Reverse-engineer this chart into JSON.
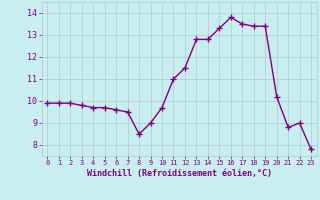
{
  "x": [
    0,
    1,
    2,
    3,
    4,
    5,
    6,
    7,
    8,
    9,
    10,
    11,
    12,
    13,
    14,
    15,
    16,
    17,
    18,
    19,
    20,
    21,
    22,
    23
  ],
  "y": [
    9.9,
    9.9,
    9.9,
    9.8,
    9.7,
    9.7,
    9.6,
    9.5,
    8.5,
    9.0,
    9.7,
    11.0,
    11.5,
    12.8,
    12.8,
    13.3,
    13.8,
    13.5,
    13.4,
    13.4,
    10.2,
    8.8,
    9.0,
    7.8
  ],
  "line_color": "#800080",
  "marker": "+",
  "bg_color": "#c8eef0",
  "grid_color": "#b0c8c8",
  "xlabel": "Windchill (Refroidissement éolien,°C)",
  "xlim": [
    -0.5,
    23.5
  ],
  "ylim": [
    7.5,
    14.5
  ],
  "yticks": [
    8,
    9,
    10,
    11,
    12,
    13,
    14
  ],
  "xticks": [
    0,
    1,
    2,
    3,
    4,
    5,
    6,
    7,
    8,
    9,
    10,
    11,
    12,
    13,
    14,
    15,
    16,
    17,
    18,
    19,
    20,
    21,
    22,
    23
  ],
  "label_color": "#800080",
  "tick_color": "#800080",
  "linewidth": 1.0,
  "markersize": 4,
  "markeredgewidth": 1.0
}
